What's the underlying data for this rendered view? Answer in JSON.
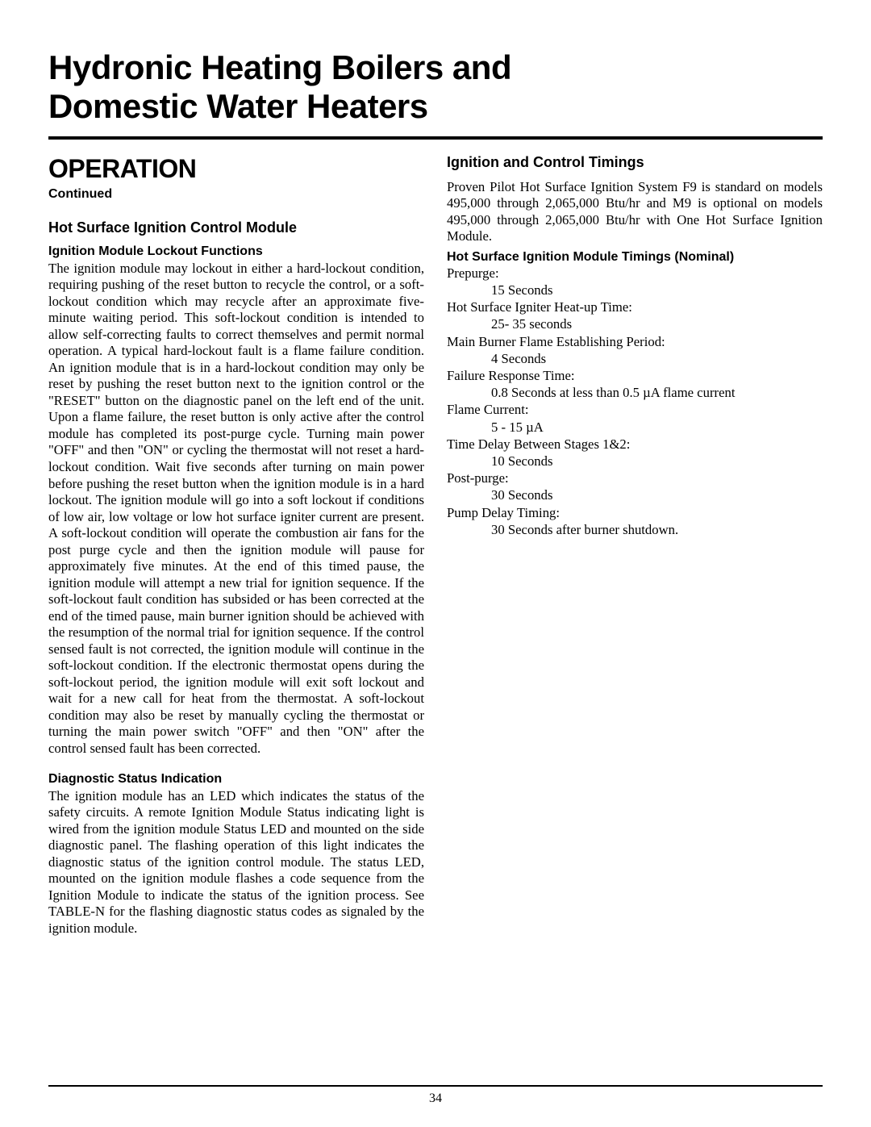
{
  "title_line1": "Hydronic Heating Boilers and",
  "title_line2": "Domestic Water Heaters",
  "left": {
    "section": "OPERATION",
    "continued": "Continued",
    "sub1": "Hot Surface Ignition Control Module",
    "h1": "Ignition Module Lockout Functions",
    "p1": "The ignition module may lockout in either a hard-lockout condition, requiring pushing of the reset button to recycle the control, or a soft-lockout condition which may recycle after an approximate five-minute waiting period. This soft-lockout condition is intended to allow self-correcting faults to correct themselves and permit normal operation. A typical hard-lockout fault is a flame failure condition. An ignition module that is in a hard-lockout condition may only be reset by pushing the reset button next to the ignition control or the \"RESET\" button on the diagnostic panel on the left end of the unit.  Upon a flame failure, the reset button is only active after the control module has completed its post-purge cycle. Turning main power \"OFF\" and then \"ON\" or cycling the thermostat will not reset a hard-lockout condition. Wait five seconds after turning on main power before pushing the reset button when the ignition module is in a hard lockout. The ignition module will go into a soft lockout if conditions of low air, low voltage or low hot surface igniter current are present. A soft-lockout condition will operate the combustion air fans for the post purge cycle and then the ignition module will pause for approximately five minutes. At the end of this timed pause, the ignition module will attempt a new trial for ignition sequence. If the soft-lockout fault condition has subsided or has been corrected at the end of the timed pause, main burner ignition should be achieved with the resumption of the normal trial for ignition sequence. If the control sensed fault is not corrected, the ignition module will continue in the soft-lockout condition. If the electronic thermostat opens during the soft-lockout period, the ignition module will exit soft lockout and wait for a new call for heat from the thermostat. A soft-lockout condition may also be reset by manually cycling the thermostat or turning the main power switch \"OFF\" and then \"ON\" after the control sensed fault has been corrected.",
    "h2": "Diagnostic Status Indication",
    "p2": "The ignition module has an LED which indicates the status of the safety circuits. A remote Ignition Module Status indicating light is wired from the ignition module Status LED and mounted on the side diagnostic panel. The flashing operation of this light indicates the diagnostic status of the ignition control module. The status LED, mounted on the ignition module flashes a code sequence from the Ignition Module to indicate the status of the ignition process. See TABLE-N for the flashing diagnostic status codes as signaled by the ignition module."
  },
  "right": {
    "sub1": "Ignition and Control Timings",
    "p1": "Proven Pilot Hot Surface Ignition System F9 is standard on models 495,000 through 2,065,000 Btu/hr and M9 is optional on models 495,000 through 2,065,000 Btu/hr with One Hot Surface Ignition Module.",
    "timings_heading": "Hot Surface Ignition Module Timings (Nominal)",
    "timings": [
      {
        "label": "Prepurge:",
        "value": "15 Seconds"
      },
      {
        "label": "Hot Surface Igniter Heat-up Time:",
        "value": "25- 35 seconds"
      },
      {
        "label": "Main Burner Flame Establishing Period:",
        "value": "4 Seconds"
      },
      {
        "label": "Failure Response Time:",
        "value": "0.8 Seconds at less than 0.5 µA flame current"
      },
      {
        "label": "Flame Current:",
        "value": "5 - 15 µA"
      },
      {
        "label": "Time Delay Between Stages 1&2:",
        "value": "10 Seconds"
      },
      {
        "label": "Post-purge:",
        "value": "30 Seconds"
      },
      {
        "label": "Pump Delay Timing:",
        "value": "30 Seconds after burner shutdown."
      }
    ]
  },
  "page_number": "34"
}
